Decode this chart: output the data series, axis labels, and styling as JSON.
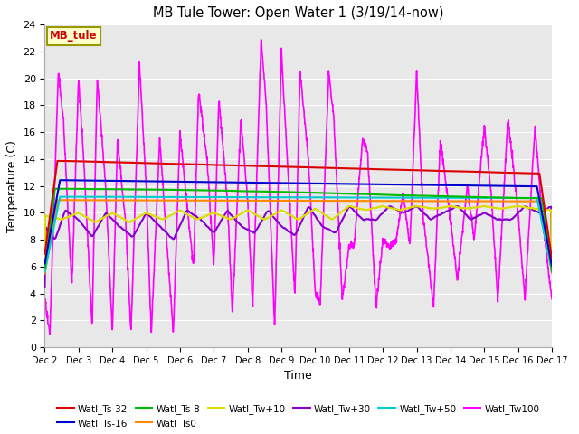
{
  "title": "MB Tule Tower: Open Water 1 (3/19/14-now)",
  "xlabel": "Time",
  "ylabel": "Temperature (C)",
  "ylim": [
    0,
    24
  ],
  "yticks": [
    0,
    2,
    4,
    6,
    8,
    10,
    12,
    14,
    16,
    18,
    20,
    22,
    24
  ],
  "xtick_labels": [
    "Dec 2",
    "Dec 3",
    "Dec 4",
    "Dec 5",
    "Dec 6",
    "Dec 7",
    "Dec 8",
    "Dec 9",
    "Dec 10",
    "Dec 11",
    "Dec 12",
    "Dec 13",
    "Dec 14",
    "Dec 15",
    "Dec 16",
    "Dec 17"
  ],
  "series": {
    "Watl_Ts-32": {
      "color": "#dd0000",
      "lw": 1.5
    },
    "Watl_Ts-16": {
      "color": "#0000cc",
      "lw": 1.5
    },
    "Watl_Ts-8": {
      "color": "#00bb00",
      "lw": 1.5
    },
    "Watl_Ts0": {
      "color": "#ff8800",
      "lw": 1.5
    },
    "Watl_Tw+10": {
      "color": "#dddd00",
      "lw": 1.5
    },
    "Watl_Tw+30": {
      "color": "#8800cc",
      "lw": 1.5
    },
    "Watl_Tw+50": {
      "color": "#00cccc",
      "lw": 1.5
    },
    "Watl_Tw100": {
      "color": "#ff00ff",
      "lw": 1.2
    }
  },
  "legend_label": "MB_tule",
  "legend_box_facecolor": "#ffffcc",
  "legend_box_edgecolor": "#999900",
  "legend_text_color": "#cc0000",
  "plot_bg_color": "#e8e8e8",
  "grid_color": "#ffffff",
  "tw100_keypoints_x": [
    0,
    0.15,
    0.4,
    0.55,
    0.8,
    1.0,
    1.15,
    1.4,
    1.55,
    1.8,
    2.0,
    2.15,
    2.4,
    2.55,
    2.8,
    3.0,
    3.15,
    3.4,
    3.55,
    3.8,
    4.0,
    4.15,
    4.4,
    4.55,
    4.8,
    5.0,
    5.15,
    5.4,
    5.55,
    5.8,
    6.0,
    6.15,
    6.4,
    6.55,
    6.8,
    7.0,
    7.15,
    7.4,
    7.55,
    7.8,
    8.0,
    8.15,
    8.4,
    8.55,
    8.8,
    9.0,
    9.15,
    9.4,
    9.55,
    9.8,
    10.0,
    10.2,
    10.4,
    10.6,
    10.8,
    11.0,
    11.2,
    11.5,
    11.7,
    12.0,
    12.2,
    12.5,
    12.7,
    13.0,
    13.2,
    13.4,
    13.7,
    14.0,
    14.2,
    14.5,
    14.7,
    15.0
  ],
  "tw100_keypoints_y": [
    3.5,
    1.0,
    20.5,
    17.0,
    4.5,
    20.0,
    14.0,
    1.5,
    20.0,
    12.0,
    1.0,
    15.5,
    9.0,
    1.0,
    21.0,
    12.0,
    1.0,
    15.5,
    10.0,
    1.0,
    16.0,
    12.0,
    6.0,
    19.0,
    14.0,
    6.0,
    18.5,
    11.0,
    2.5,
    17.0,
    11.0,
    3.0,
    23.0,
    18.0,
    1.5,
    22.0,
    15.0,
    3.8,
    20.5,
    14.0,
    4.0,
    3.5,
    20.5,
    17.0,
    3.5,
    7.5,
    7.5,
    15.5,
    14.5,
    3.0,
    8.0,
    7.5,
    8.0,
    11.5,
    7.5,
    20.5,
    9.5,
    3.0,
    15.5,
    9.5,
    5.0,
    12.0,
    8.0,
    16.5,
    11.5,
    3.5,
    17.0,
    10.0,
    3.5,
    16.5,
    10.0,
    3.5
  ],
  "tw30_keypoints_x": [
    0,
    0.3,
    0.6,
    1.0,
    1.4,
    1.8,
    2.2,
    2.6,
    3.0,
    3.4,
    3.8,
    4.2,
    4.6,
    5.0,
    5.4,
    5.8,
    6.2,
    6.6,
    7.0,
    7.4,
    7.8,
    8.2,
    8.6,
    9.0,
    9.4,
    9.8,
    10.2,
    10.6,
    11.0,
    11.4,
    11.8,
    12.2,
    12.6,
    13.0,
    13.4,
    13.8,
    14.2,
    14.6,
    15.0
  ],
  "tw30_keypoints_y": [
    9.0,
    8.0,
    10.2,
    9.5,
    8.2,
    10.0,
    9.0,
    8.2,
    10.0,
    9.0,
    8.0,
    10.2,
    9.5,
    8.5,
    10.2,
    9.0,
    8.5,
    10.2,
    9.0,
    8.3,
    10.5,
    9.0,
    8.5,
    10.5,
    9.5,
    9.5,
    10.5,
    10.0,
    10.5,
    9.5,
    10.0,
    10.5,
    9.5,
    10.0,
    9.5,
    9.5,
    10.5,
    10.0,
    10.5
  ],
  "tw10_keypoints_x": [
    0,
    0.5,
    1.0,
    1.5,
    2.0,
    2.5,
    3.0,
    3.5,
    4.0,
    4.5,
    5.0,
    5.5,
    6.0,
    6.5,
    7.0,
    7.5,
    8.0,
    8.5,
    9.0,
    9.5,
    10.0,
    10.5,
    11.0,
    11.5,
    12.0,
    12.5,
    13.0,
    13.5,
    14.0,
    14.5,
    15.0
  ],
  "tw10_keypoints_y": [
    9.8,
    9.5,
    10.0,
    9.3,
    10.0,
    9.3,
    10.0,
    9.5,
    10.2,
    9.5,
    10.0,
    9.5,
    10.2,
    9.5,
    10.2,
    9.5,
    10.3,
    9.5,
    10.5,
    10.2,
    10.5,
    10.2,
    10.5,
    10.3,
    10.5,
    10.3,
    10.5,
    10.3,
    10.5,
    10.3,
    10.2
  ]
}
